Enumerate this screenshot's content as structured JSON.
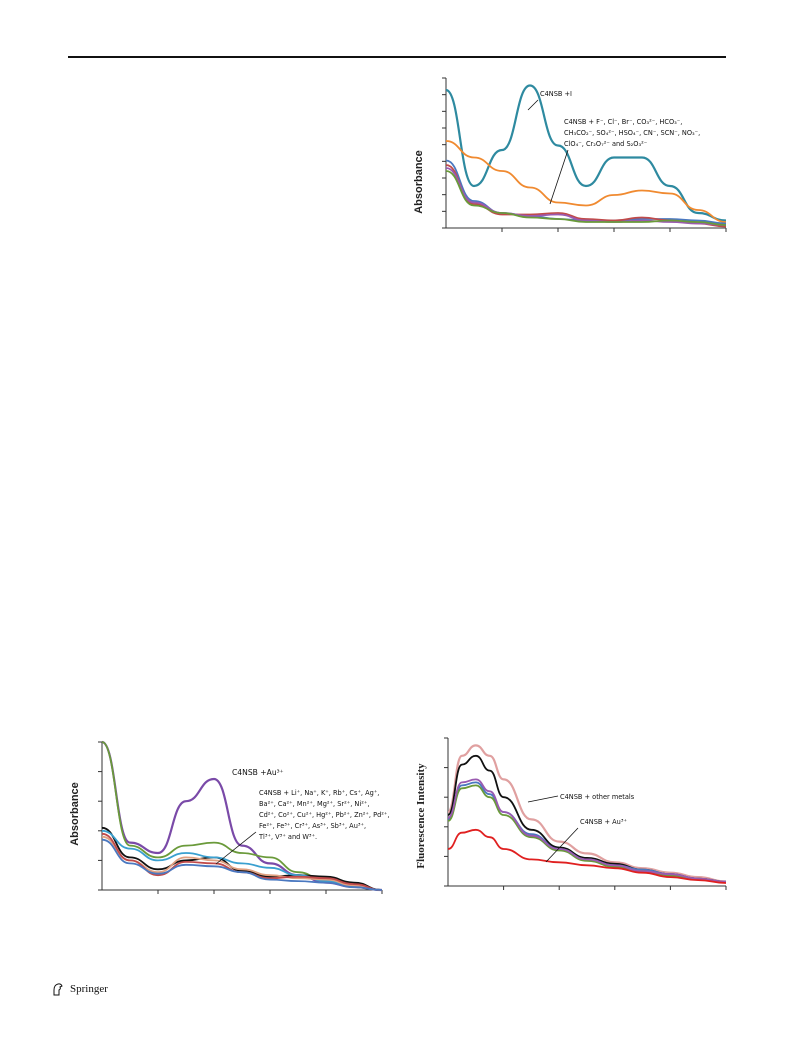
{
  "footer": {
    "publisher": "Springer",
    "icon": "springer-horse-icon"
  },
  "chart_data": [
    {
      "type": "line",
      "ylabel": "Absorbance",
      "annotations": [
        "C4NSB +I",
        "C4NSB + F⁻, Cl⁻, Br⁻, CO₃²⁻, HCO₃⁻,",
        "CH₃CO₂⁻, SO₄²⁻, HSO₄⁻, CN⁻, SCN⁻, NO₃⁻,",
        "ClO₄⁻, Cr₂O₇²⁻ and S₂O₃²⁻"
      ],
      "x": [
        0,
        10,
        20,
        30,
        40,
        50,
        60,
        70,
        80,
        90,
        100
      ],
      "ylim": [
        0,
        1
      ],
      "series": [
        {
          "name": "C4NSB +I",
          "color": "#2e8aa0",
          "values": [
            0.92,
            0.28,
            0.52,
            0.95,
            0.55,
            0.28,
            0.47,
            0.47,
            0.28,
            0.1,
            0.05
          ]
        },
        {
          "color": "#f08a30",
          "values": [
            0.58,
            0.47,
            0.38,
            0.27,
            0.17,
            0.15,
            0.22,
            0.25,
            0.23,
            0.12,
            0.04
          ]
        },
        {
          "color": "#4a78c0",
          "values": [
            0.45,
            0.18,
            0.1,
            0.08,
            0.06,
            0.05,
            0.05,
            0.06,
            0.06,
            0.05,
            0.03
          ]
        },
        {
          "color": "#c04a4a",
          "values": [
            0.42,
            0.16,
            0.09,
            0.09,
            0.1,
            0.06,
            0.05,
            0.07,
            0.05,
            0.03,
            0.01
          ]
        },
        {
          "color": "#9a5ab0",
          "values": [
            0.4,
            0.17,
            0.1,
            0.08,
            0.09,
            0.05,
            0.04,
            0.05,
            0.04,
            0.03,
            0.02
          ]
        },
        {
          "color": "#6a9a3a",
          "values": [
            0.38,
            0.15,
            0.1,
            0.07,
            0.06,
            0.04,
            0.04,
            0.04,
            0.05,
            0.04,
            0.02
          ]
        }
      ]
    },
    {
      "type": "line",
      "ylabel": "Absorbance",
      "annotations": [
        "C4NSB +Au³⁺",
        "C4NSB + Li⁺, Na⁺, K⁺, Rb⁺, Cs⁺, Ag⁺,",
        "Ba²⁺, Ca²⁺, Mn²⁺, Mg²⁺, Sr²⁺, Ni²⁺,",
        "Cd²⁺, Co²⁺, Cu²⁺, Hg²⁺, Pb²⁺, Zn²⁺, Pd²⁺,",
        "Fe²⁺, Fe³⁺, Cr³⁺, As³⁺, Sb³⁺, Au³⁺,",
        "Tl³⁺, V³⁺ and W³⁺."
      ],
      "x": [
        0,
        10,
        20,
        30,
        40,
        50,
        60,
        70,
        80,
        90,
        100
      ],
      "ylim": [
        0,
        1
      ],
      "series": [
        {
          "name": "C4NSB +Au³⁺",
          "color": "#7a4aa8",
          "values": [
            1.0,
            0.32,
            0.25,
            0.6,
            0.75,
            0.3,
            0.18,
            0.1,
            0.05,
            0.02,
            0.0
          ]
        },
        {
          "color": "#6a9a3a",
          "values": [
            1.0,
            0.3,
            0.22,
            0.3,
            0.32,
            0.25,
            0.22,
            0.12,
            0.06,
            0.02,
            0.0
          ]
        },
        {
          "color": "#111111",
          "values": [
            0.42,
            0.22,
            0.14,
            0.2,
            0.22,
            0.13,
            0.09,
            0.1,
            0.09,
            0.05,
            0.0
          ]
        },
        {
          "color": "#3aa0d0",
          "values": [
            0.4,
            0.28,
            0.2,
            0.25,
            0.22,
            0.18,
            0.15,
            0.1,
            0.06,
            0.02,
            0.0
          ]
        },
        {
          "color": "#e0a080",
          "values": [
            0.36,
            0.2,
            0.12,
            0.22,
            0.2,
            0.14,
            0.1,
            0.08,
            0.07,
            0.03,
            0.0
          ]
        },
        {
          "color": "#c04a4a",
          "values": [
            0.38,
            0.2,
            0.1,
            0.19,
            0.18,
            0.12,
            0.08,
            0.09,
            0.08,
            0.04,
            0.0
          ]
        },
        {
          "color": "#4a78c0",
          "values": [
            0.34,
            0.18,
            0.11,
            0.17,
            0.16,
            0.12,
            0.07,
            0.06,
            0.05,
            0.02,
            0.0
          ]
        }
      ]
    },
    {
      "type": "line",
      "ylabel": "Fluorescence Intensity",
      "annotations": [
        "C4NSB + other metals",
        "C4NSB + Au³⁺"
      ],
      "x": [
        0,
        5,
        10,
        15,
        20,
        30,
        40,
        50,
        60,
        70,
        80,
        90,
        100
      ],
      "ylim": [
        0,
        1
      ],
      "series": [
        {
          "color": "#e0a0a0",
          "values": [
            0.5,
            0.88,
            0.95,
            0.88,
            0.72,
            0.45,
            0.3,
            0.22,
            0.16,
            0.12,
            0.09,
            0.06,
            0.03
          ]
        },
        {
          "color": "#111111",
          "values": [
            0.48,
            0.82,
            0.88,
            0.78,
            0.6,
            0.38,
            0.26,
            0.19,
            0.15,
            0.11,
            0.08,
            0.05,
            0.03
          ]
        },
        {
          "color": "#4a78c0",
          "values": [
            0.45,
            0.68,
            0.7,
            0.62,
            0.5,
            0.35,
            0.25,
            0.18,
            0.14,
            0.11,
            0.08,
            0.05,
            0.03
          ]
        },
        {
          "color": "#6a9a3a",
          "values": [
            0.44,
            0.66,
            0.68,
            0.6,
            0.48,
            0.33,
            0.24,
            0.17,
            0.13,
            0.1,
            0.07,
            0.05,
            0.03
          ]
        },
        {
          "color": "#9a5ab0",
          "values": [
            0.46,
            0.7,
            0.72,
            0.64,
            0.5,
            0.34,
            0.25,
            0.18,
            0.14,
            0.1,
            0.08,
            0.05,
            0.03
          ]
        },
        {
          "name": "C4NSB + Au³⁺",
          "color": "#e02020",
          "values": [
            0.25,
            0.36,
            0.38,
            0.33,
            0.25,
            0.18,
            0.16,
            0.14,
            0.12,
            0.09,
            0.06,
            0.04,
            0.02
          ]
        }
      ]
    }
  ]
}
